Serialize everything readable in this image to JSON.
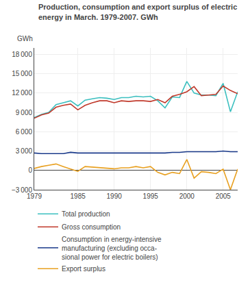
{
  "chart_data": {
    "type": "line",
    "title": "Production, consumption and export surplus of electric\nenergy in March. 1979-2007. GWh",
    "ylabel": "GWh",
    "x": [
      1979,
      1980,
      1981,
      1982,
      1983,
      1984,
      1985,
      1986,
      1987,
      1988,
      1989,
      1990,
      1991,
      1992,
      1993,
      1994,
      1995,
      1996,
      1997,
      1998,
      1999,
      2000,
      2001,
      2002,
      2003,
      2004,
      2005,
      2006,
      2007
    ],
    "series": [
      {
        "name": "Total production",
        "color": "#3BBFBF",
        "values": [
          8200,
          8700,
          9000,
          10200,
          10500,
          10800,
          10000,
          10900,
          11100,
          11300,
          11200,
          11000,
          11300,
          11300,
          11500,
          11400,
          11500,
          10800,
          9700,
          11400,
          11300,
          13800,
          12000,
          11700,
          11700,
          11600,
          13500,
          9100,
          12200
        ]
      },
      {
        "name": "Gross consumption",
        "color": "#C0392B",
        "values": [
          8100,
          8600,
          8900,
          9800,
          10100,
          10300,
          9400,
          10100,
          10500,
          10800,
          10800,
          10500,
          10800,
          10700,
          10800,
          10800,
          10700,
          11000,
          10500,
          11500,
          11800,
          12200,
          13000,
          11600,
          11700,
          11800,
          13100,
          12400,
          11900
        ]
      },
      {
        "name": "Consumption in energy-intensive\nmanufacturing (excluding occa-\nsional power for electric boilers)",
        "color": "#1A3A8A",
        "values": [
          2700,
          2600,
          2600,
          2600,
          2600,
          2800,
          2700,
          2700,
          2700,
          2700,
          2700,
          2700,
          2700,
          2700,
          2700,
          2700,
          2700,
          2700,
          2700,
          2800,
          2800,
          2900,
          2900,
          2900,
          2900,
          2900,
          3000,
          2900,
          2900
        ]
      },
      {
        "name": "Export surplus",
        "color": "#E8A020",
        "values": [
          300,
          600,
          800,
          1000,
          600,
          200,
          -150,
          600,
          500,
          400,
          300,
          250,
          400,
          400,
          600,
          400,
          600,
          -300,
          -700,
          -300,
          -500,
          1700,
          -1200,
          -200,
          -300,
          -500,
          200,
          -3000,
          200
        ]
      }
    ],
    "xlim": [
      1979,
      2007
    ],
    "xticks": [
      1979,
      1985,
      1990,
      1995,
      2000,
      2005
    ],
    "ylim": [
      -3000,
      19000
    ],
    "yticks": [
      {
        "value": -3000,
        "label": "−3 000"
      },
      0,
      {
        "value": 3000,
        "label": "3 000"
      },
      {
        "value": 6000,
        "label": "6 000"
      },
      {
        "value": 9000,
        "label": "9 000"
      },
      {
        "value": 12000,
        "label": "12 000"
      },
      {
        "value": 15000,
        "label": "15 000"
      },
      {
        "value": 18000,
        "label": "18 000"
      }
    ],
    "grid": true,
    "legend": "bottom"
  }
}
